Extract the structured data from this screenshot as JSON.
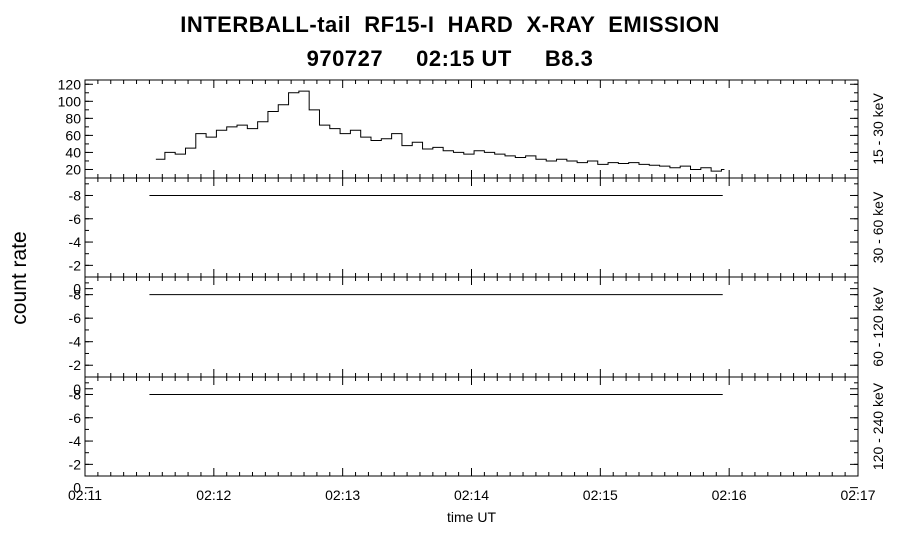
{
  "title_line1": "INTERBALL-tail  RF15-I  HARD  X-RAY  EMISSION",
  "title_line2": "970727     02:15 UT     B8.3",
  "chart_data": {
    "type": "line",
    "ylabel": "count rate",
    "xlabel": "time UT",
    "xlim_min": [
      0,
      6
    ],
    "x_ticks": [
      "02:11",
      "02:12",
      "02:13",
      "02:14",
      "02:15",
      "02:16",
      "02:17"
    ],
    "panels": [
      {
        "name": "15 - 30 keV",
        "ylim": [
          10,
          125
        ],
        "y_ticks": [
          20,
          40,
          60,
          80,
          100,
          120
        ],
        "x_min": [
          0.55,
          0.62,
          0.7,
          0.78,
          0.86,
          0.94,
          1.02,
          1.1,
          1.18,
          1.26,
          1.34,
          1.42,
          1.5,
          1.58,
          1.66,
          1.74,
          1.82,
          1.9,
          1.98,
          2.06,
          2.14,
          2.22,
          2.3,
          2.38,
          2.46,
          2.54,
          2.62,
          2.7,
          2.78,
          2.86,
          2.94,
          3.02,
          3.1,
          3.18,
          3.26,
          3.34,
          3.42,
          3.5,
          3.58,
          3.66,
          3.74,
          3.82,
          3.9,
          3.98,
          4.06,
          4.14,
          4.22,
          4.3,
          4.38,
          4.46,
          4.54,
          4.62,
          4.7,
          4.78,
          4.86,
          4.94
        ],
        "values": [
          32,
          40,
          38,
          45,
          62,
          58,
          66,
          70,
          72,
          68,
          76,
          88,
          96,
          110,
          112,
          90,
          72,
          68,
          62,
          66,
          58,
          54,
          56,
          62,
          48,
          52,
          44,
          46,
          42,
          40,
          38,
          42,
          40,
          38,
          36,
          34,
          36,
          32,
          30,
          32,
          30,
          28,
          30,
          26,
          28,
          27,
          28,
          26,
          25,
          24,
          22,
          24,
          20,
          22,
          18,
          20
        ]
      },
      {
        "name": "30 - 60 keV",
        "ylim": [
          -1,
          -9.5
        ],
        "y_ticks": [
          -8,
          -6,
          -4,
          -2,
          0
        ],
        "x_min": [
          0.5,
          4.95
        ],
        "values": [
          -8,
          -8
        ]
      },
      {
        "name": "60 - 120 keV",
        "ylim": [
          -1,
          -9.5
        ],
        "y_ticks": [
          -8,
          -6,
          -4,
          -2,
          0
        ],
        "x_min": [
          0.5,
          4.95
        ],
        "values": [
          -8,
          -8
        ]
      },
      {
        "name": "120 - 240 keV",
        "ylim": [
          -1,
          -9.5
        ],
        "y_ticks": [
          -8,
          -6,
          -4,
          -2,
          0
        ],
        "x_min": [
          0.5,
          4.95
        ],
        "values": [
          -8,
          -8
        ]
      }
    ]
  }
}
